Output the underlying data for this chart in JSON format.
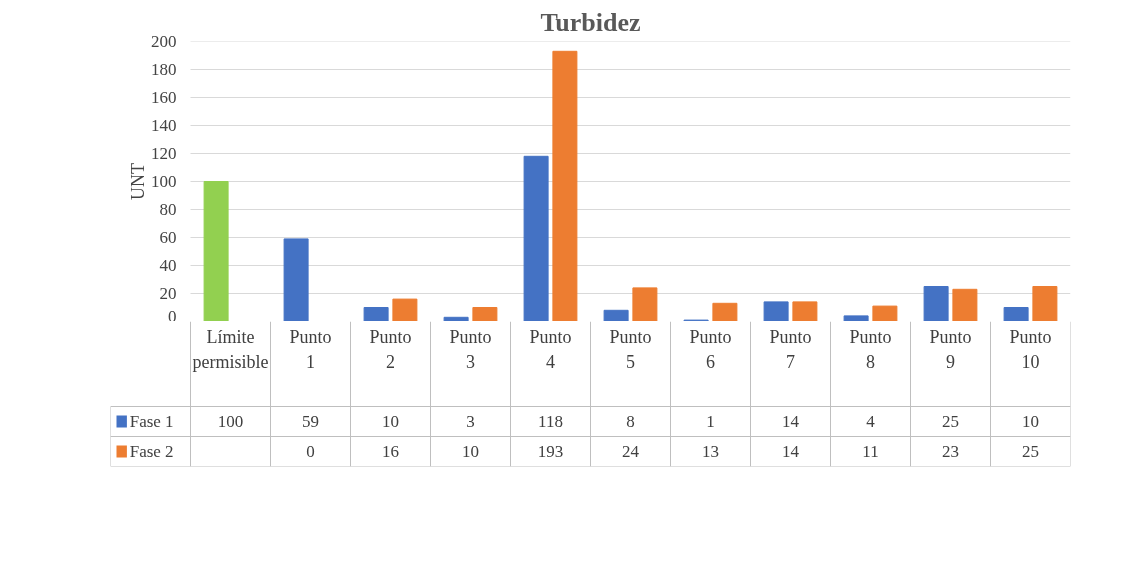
{
  "chart_data": {
    "type": "bar",
    "title": "Turbidez",
    "ylabel": "UNT",
    "categories": [
      "Límite permisible",
      "Punto 1",
      "Punto 2",
      "Punto 3",
      "Punto 4",
      "Punto 5",
      "Punto 6",
      "Punto 7",
      "Punto 8",
      "Punto 9",
      "Punto 10"
    ],
    "series": [
      {
        "name": "Fase 1",
        "color": "#4472c4",
        "colors": [
          "#92d050",
          "#4472c4",
          "#4472c4",
          "#4472c4",
          "#4472c4",
          "#4472c4",
          "#4472c4",
          "#4472c4",
          "#4472c4",
          "#4472c4",
          "#4472c4"
        ],
        "values": [
          100,
          59,
          10,
          3,
          118,
          8,
          1,
          14,
          4,
          25,
          10
        ]
      },
      {
        "name": "Fase 2",
        "color": "#ed7d31",
        "values": [
          null,
          0,
          16,
          10,
          193,
          24,
          13,
          14,
          11,
          23,
          25
        ]
      }
    ],
    "ylim": [
      0,
      200
    ],
    "yticks": [
      0,
      20,
      40,
      60,
      80,
      100,
      120,
      140,
      160,
      180,
      200
    ],
    "grid": "y",
    "legend": "bottom",
    "data_labels": true
  }
}
